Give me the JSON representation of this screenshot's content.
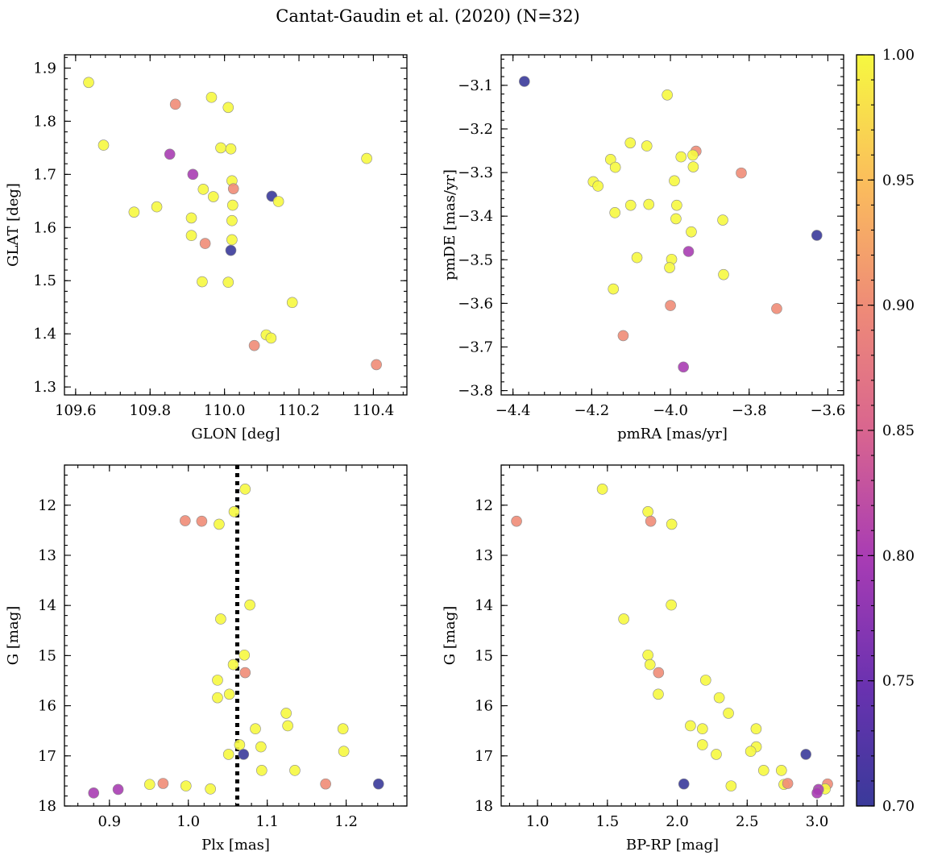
{
  "title": "Cantat-Gaudin et al. (2020) (N=32)",
  "colorbar": {
    "range": [
      0.7,
      1.0
    ],
    "ticks": [
      0.7,
      0.75,
      0.8,
      0.85,
      0.9,
      0.95,
      1.0
    ],
    "tick_labels": [
      "0.70",
      "0.75",
      "0.80",
      "0.85",
      "0.90",
      "0.95",
      "1.00"
    ],
    "colormap": "plasma"
  },
  "chart_data": [
    {
      "type": "scatter",
      "xlabel": "GLON [deg]",
      "ylabel": "GLAT [deg]",
      "xlim": [
        109.57,
        110.49
      ],
      "ylim": [
        1.285,
        1.925
      ],
      "xticks": [
        109.6,
        109.8,
        110.0,
        110.2,
        110.4
      ],
      "xtick_labels": [
        "109.6",
        "109.8",
        "110.0",
        "110.2",
        "110.4"
      ],
      "yticks": [
        1.3,
        1.4,
        1.5,
        1.6,
        1.7,
        1.8,
        1.9
      ],
      "ytick_labels": [
        "1.3",
        "1.4",
        "1.5",
        "1.6",
        "1.7",
        "1.8",
        "1.9"
      ],
      "points": [
        {
          "x": 109.635,
          "y": 1.873,
          "c": 1.0
        },
        {
          "x": 109.675,
          "y": 1.755,
          "c": 1.0
        },
        {
          "x": 109.757,
          "y": 1.629,
          "c": 1.0
        },
        {
          "x": 109.818,
          "y": 1.639,
          "c": 1.0
        },
        {
          "x": 109.868,
          "y": 1.832,
          "c": 0.9
        },
        {
          "x": 109.853,
          "y": 1.738,
          "c": 0.8
        },
        {
          "x": 109.915,
          "y": 1.7,
          "c": 0.8
        },
        {
          "x": 109.965,
          "y": 1.845,
          "c": 1.0
        },
        {
          "x": 110.01,
          "y": 1.826,
          "c": 1.0
        },
        {
          "x": 109.99,
          "y": 1.75,
          "c": 1.0
        },
        {
          "x": 110.017,
          "y": 1.748,
          "c": 1.0
        },
        {
          "x": 110.02,
          "y": 1.688,
          "c": 1.0
        },
        {
          "x": 110.024,
          "y": 1.673,
          "c": 0.9
        },
        {
          "x": 109.943,
          "y": 1.672,
          "c": 1.0
        },
        {
          "x": 109.97,
          "y": 1.658,
          "c": 1.0
        },
        {
          "x": 110.022,
          "y": 1.642,
          "c": 1.0
        },
        {
          "x": 109.911,
          "y": 1.618,
          "c": 1.0
        },
        {
          "x": 110.02,
          "y": 1.613,
          "c": 1.0
        },
        {
          "x": 109.911,
          "y": 1.585,
          "c": 1.0
        },
        {
          "x": 110.02,
          "y": 1.577,
          "c": 1.0
        },
        {
          "x": 109.948,
          "y": 1.57,
          "c": 0.9
        },
        {
          "x": 110.017,
          "y": 1.557,
          "c": 0.7
        },
        {
          "x": 110.127,
          "y": 1.659,
          "c": 0.7
        },
        {
          "x": 110.145,
          "y": 1.649,
          "c": 1.0
        },
        {
          "x": 109.94,
          "y": 1.498,
          "c": 1.0
        },
        {
          "x": 110.01,
          "y": 1.497,
          "c": 1.0
        },
        {
          "x": 110.182,
          "y": 1.459,
          "c": 1.0
        },
        {
          "x": 110.112,
          "y": 1.398,
          "c": 1.0
        },
        {
          "x": 110.125,
          "y": 1.392,
          "c": 1.0
        },
        {
          "x": 110.08,
          "y": 1.378,
          "c": 0.9
        },
        {
          "x": 110.382,
          "y": 1.73,
          "c": 1.0
        },
        {
          "x": 110.408,
          "y": 1.342,
          "c": 0.9
        }
      ]
    },
    {
      "type": "scatter",
      "xlabel": "pmRA [mas/yr]",
      "ylabel": "pmDE [mas/yr]",
      "xlim": [
        -4.43,
        -3.56
      ],
      "ylim": [
        -3.81,
        -3.03
      ],
      "xticks": [
        -4.4,
        -4.2,
        -4.0,
        -3.8,
        -3.6
      ],
      "xtick_labels": [
        "−4.4",
        "−4.2",
        "−4.0",
        "−3.8",
        "−3.6"
      ],
      "yticks": [
        -3.1,
        -3.2,
        -3.3,
        -3.4,
        -3.5,
        -3.6,
        -3.7,
        -3.8
      ],
      "ytick_labels": [
        "−3.1",
        "−3.2",
        "−3.3",
        "−3.4",
        "−3.5",
        "−3.6",
        "−3.7",
        "−3.8"
      ],
      "points": [
        {
          "x": -4.371,
          "y": -3.091,
          "c": 0.7
        },
        {
          "x": -4.008,
          "y": -3.122,
          "c": 1.0
        },
        {
          "x": -4.102,
          "y": -3.232,
          "c": 1.0
        },
        {
          "x": -4.06,
          "y": -3.239,
          "c": 1.0
        },
        {
          "x": -4.152,
          "y": -3.27,
          "c": 1.0
        },
        {
          "x": -4.14,
          "y": -3.288,
          "c": 1.0
        },
        {
          "x": -3.935,
          "y": -3.251,
          "c": 0.9
        },
        {
          "x": -3.943,
          "y": -3.26,
          "c": 1.0
        },
        {
          "x": -3.973,
          "y": -3.264,
          "c": 1.0
        },
        {
          "x": -3.942,
          "y": -3.287,
          "c": 1.0
        },
        {
          "x": -3.82,
          "y": -3.301,
          "c": 0.9
        },
        {
          "x": -4.196,
          "y": -3.321,
          "c": 1.0
        },
        {
          "x": -4.184,
          "y": -3.331,
          "c": 1.0
        },
        {
          "x": -3.99,
          "y": -3.319,
          "c": 1.0
        },
        {
          "x": -4.101,
          "y": -3.375,
          "c": 1.0
        },
        {
          "x": -4.055,
          "y": -3.373,
          "c": 1.0
        },
        {
          "x": -3.984,
          "y": -3.375,
          "c": 1.0
        },
        {
          "x": -4.141,
          "y": -3.392,
          "c": 1.0
        },
        {
          "x": -3.986,
          "y": -3.406,
          "c": 1.0
        },
        {
          "x": -3.867,
          "y": -3.409,
          "c": 1.0
        },
        {
          "x": -3.947,
          "y": -3.436,
          "c": 1.0
        },
        {
          "x": -3.628,
          "y": -3.444,
          "c": 0.7
        },
        {
          "x": -4.085,
          "y": -3.495,
          "c": 1.0
        },
        {
          "x": -3.997,
          "y": -3.499,
          "c": 1.0
        },
        {
          "x": -3.954,
          "y": -3.481,
          "c": 0.8
        },
        {
          "x": -4.002,
          "y": -3.518,
          "c": 1.0
        },
        {
          "x": -3.865,
          "y": -3.534,
          "c": 1.0
        },
        {
          "x": -4.145,
          "y": -3.567,
          "c": 1.0
        },
        {
          "x": -4.0,
          "y": -3.605,
          "c": 0.9
        },
        {
          "x": -3.73,
          "y": -3.612,
          "c": 0.9
        },
        {
          "x": -4.12,
          "y": -3.674,
          "c": 0.9
        },
        {
          "x": -3.967,
          "y": -3.746,
          "c": 0.8
        }
      ]
    },
    {
      "type": "scatter",
      "xlabel": "Plx [mas]",
      "ylabel": "G [mag]",
      "xlim": [
        0.843,
        1.277
      ],
      "ylim": [
        18.0,
        11.2
      ],
      "y_inverted": true,
      "vline": {
        "x": 1.062,
        "style": "dotted",
        "color": "#000000"
      },
      "xticks": [
        0.9,
        1.0,
        1.1,
        1.2
      ],
      "xtick_labels": [
        "0.9",
        "1.0",
        "1.1",
        "1.2"
      ],
      "yticks": [
        12,
        13,
        14,
        15,
        16,
        17,
        18
      ],
      "ytick_labels": [
        "12",
        "13",
        "14",
        "15",
        "16",
        "17",
        "18"
      ],
      "points": [
        {
          "x": 1.072,
          "y": 11.68,
          "c": 1.0
        },
        {
          "x": 1.058,
          "y": 12.13,
          "c": 1.0
        },
        {
          "x": 0.996,
          "y": 12.31,
          "c": 0.9
        },
        {
          "x": 1.017,
          "y": 12.32,
          "c": 0.9
        },
        {
          "x": 1.039,
          "y": 12.38,
          "c": 1.0
        },
        {
          "x": 1.078,
          "y": 13.99,
          "c": 1.0
        },
        {
          "x": 1.041,
          "y": 14.27,
          "c": 1.0
        },
        {
          "x": 1.071,
          "y": 14.99,
          "c": 1.0
        },
        {
          "x": 1.057,
          "y": 15.18,
          "c": 1.0
        },
        {
          "x": 1.072,
          "y": 15.34,
          "c": 0.9
        },
        {
          "x": 1.037,
          "y": 15.49,
          "c": 1.0
        },
        {
          "x": 1.052,
          "y": 15.77,
          "c": 1.0
        },
        {
          "x": 1.037,
          "y": 15.84,
          "c": 1.0
        },
        {
          "x": 1.124,
          "y": 16.15,
          "c": 1.0
        },
        {
          "x": 1.126,
          "y": 16.4,
          "c": 1.0
        },
        {
          "x": 1.085,
          "y": 16.46,
          "c": 1.0
        },
        {
          "x": 1.196,
          "y": 16.46,
          "c": 1.0
        },
        {
          "x": 1.065,
          "y": 16.78,
          "c": 1.0
        },
        {
          "x": 1.092,
          "y": 16.82,
          "c": 1.0
        },
        {
          "x": 1.197,
          "y": 16.91,
          "c": 1.0
        },
        {
          "x": 1.051,
          "y": 16.97,
          "c": 1.0
        },
        {
          "x": 1.07,
          "y": 16.97,
          "c": 0.7
        },
        {
          "x": 1.093,
          "y": 17.29,
          "c": 1.0
        },
        {
          "x": 1.135,
          "y": 17.29,
          "c": 1.0
        },
        {
          "x": 0.951,
          "y": 17.57,
          "c": 1.0
        },
        {
          "x": 0.968,
          "y": 17.55,
          "c": 0.9
        },
        {
          "x": 0.997,
          "y": 17.6,
          "c": 1.0
        },
        {
          "x": 1.028,
          "y": 17.66,
          "c": 1.0
        },
        {
          "x": 1.174,
          "y": 17.56,
          "c": 0.9
        },
        {
          "x": 1.241,
          "y": 17.56,
          "c": 0.7
        },
        {
          "x": 0.88,
          "y": 17.74,
          "c": 0.8
        },
        {
          "x": 0.911,
          "y": 17.67,
          "c": 0.8
        }
      ]
    },
    {
      "type": "scatter",
      "xlabel": "BP-RP [mag]",
      "ylabel": "G [mag]",
      "xlim": [
        0.74,
        3.19
      ],
      "ylim": [
        18.0,
        11.2
      ],
      "y_inverted": true,
      "xticks": [
        1.0,
        1.5,
        2.0,
        2.5,
        3.0
      ],
      "xtick_labels": [
        "1.0",
        "1.5",
        "2.0",
        "2.5",
        "3.0"
      ],
      "yticks": [
        12,
        13,
        14,
        15,
        16,
        17,
        18
      ],
      "ytick_labels": [
        "12",
        "13",
        "14",
        "15",
        "16",
        "17",
        "18"
      ],
      "points": [
        {
          "x": 1.464,
          "y": 11.68,
          "c": 1.0
        },
        {
          "x": 0.85,
          "y": 12.32,
          "c": 0.9
        },
        {
          "x": 1.79,
          "y": 12.13,
          "c": 1.0
        },
        {
          "x": 1.81,
          "y": 12.32,
          "c": 0.9
        },
        {
          "x": 1.96,
          "y": 12.38,
          "c": 1.0
        },
        {
          "x": 1.957,
          "y": 13.99,
          "c": 1.0
        },
        {
          "x": 1.617,
          "y": 14.27,
          "c": 1.0
        },
        {
          "x": 1.79,
          "y": 14.99,
          "c": 1.0
        },
        {
          "x": 1.805,
          "y": 15.18,
          "c": 1.0
        },
        {
          "x": 1.866,
          "y": 15.34,
          "c": 0.9
        },
        {
          "x": 2.203,
          "y": 15.49,
          "c": 1.0
        },
        {
          "x": 1.864,
          "y": 15.77,
          "c": 1.0
        },
        {
          "x": 2.3,
          "y": 15.84,
          "c": 1.0
        },
        {
          "x": 2.366,
          "y": 16.15,
          "c": 1.0
        },
        {
          "x": 2.094,
          "y": 16.4,
          "c": 1.0
        },
        {
          "x": 2.18,
          "y": 16.46,
          "c": 1.0
        },
        {
          "x": 2.564,
          "y": 16.46,
          "c": 1.0
        },
        {
          "x": 2.18,
          "y": 16.78,
          "c": 1.0
        },
        {
          "x": 2.565,
          "y": 16.82,
          "c": 1.0
        },
        {
          "x": 2.525,
          "y": 16.91,
          "c": 1.0
        },
        {
          "x": 2.279,
          "y": 16.97,
          "c": 1.0
        },
        {
          "x": 2.92,
          "y": 16.97,
          "c": 0.7
        },
        {
          "x": 2.618,
          "y": 17.29,
          "c": 1.0
        },
        {
          "x": 2.745,
          "y": 17.29,
          "c": 1.0
        },
        {
          "x": 2.763,
          "y": 17.57,
          "c": 1.0
        },
        {
          "x": 2.79,
          "y": 17.55,
          "c": 0.9
        },
        {
          "x": 2.047,
          "y": 17.56,
          "c": 0.7
        },
        {
          "x": 2.385,
          "y": 17.6,
          "c": 1.0
        },
        {
          "x": 3.075,
          "y": 17.56,
          "c": 0.9
        },
        {
          "x": 3.058,
          "y": 17.66,
          "c": 1.0
        },
        {
          "x": 3.01,
          "y": 17.67,
          "c": 0.8
        },
        {
          "x": 3.0,
          "y": 17.74,
          "c": 0.8
        }
      ]
    }
  ]
}
